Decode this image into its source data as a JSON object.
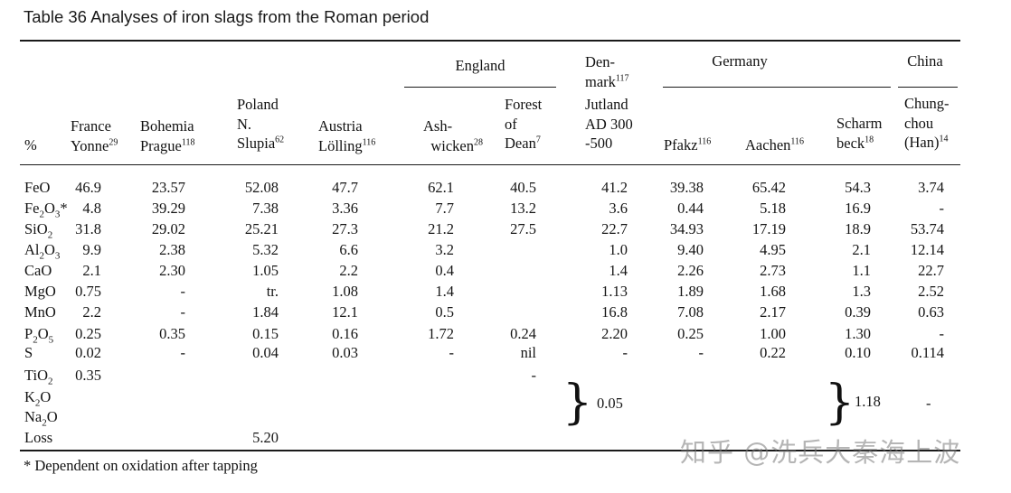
{
  "caption": "Table 36  Analyses of iron slags from the Roman period",
  "groups": {
    "england": "England",
    "germany": "Germany",
    "china": "China",
    "denmark_l1": "Den-",
    "denmark_l2": "mark",
    "denmark_ref": "117"
  },
  "headers": {
    "percent": "%",
    "france": {
      "l1": "France",
      "l2": "Yonne",
      "ref": "29"
    },
    "bohemia": {
      "l1": "Bohemia",
      "l2": "Prague",
      "ref": "118"
    },
    "poland": {
      "l1": "Poland",
      "l2": "N.",
      "l3": "Slupia",
      "ref": "62"
    },
    "austria": {
      "l1": "Austria",
      "l2": "Lölling",
      "ref": "116"
    },
    "ashwicken": {
      "l1": "Ash-",
      "l2": "wicken",
      "ref": "28"
    },
    "forest": {
      "l1": "Forest",
      "l2": "of",
      "l3": "Dean",
      "ref": "7"
    },
    "jutland": {
      "l1": "Jutland",
      "l2": "AD 300",
      "l3": "-500"
    },
    "pfakz": {
      "l1": "Pfakz",
      "ref": "116"
    },
    "aachen": {
      "l1": "Aachen",
      "ref": "116"
    },
    "scharm": {
      "l1": "Scharm",
      "l2": "beck",
      "ref": "18"
    },
    "chungchou": {
      "l1": "Chung-",
      "l2": "chou",
      "l3": "(Han)",
      "ref": "14"
    }
  },
  "rows": [
    {
      "label": "FeO",
      "v": [
        "46.9",
        "23.57",
        "52.08",
        "47.7",
        "62.1",
        "40.5",
        "41.2",
        "39.38",
        "65.42",
        "54.3",
        "3.74"
      ]
    },
    {
      "label": "Fe2O3*",
      "v": [
        "4.8",
        "39.29",
        "7.38",
        "3.36",
        "7.7",
        "13.2",
        "3.6",
        "0.44",
        "5.18",
        "16.9",
        "-"
      ]
    },
    {
      "label": "SiO2",
      "v": [
        "31.8",
        "29.02",
        "25.21",
        "27.3",
        "21.2",
        "27.5",
        "22.7",
        "34.93",
        "17.19",
        "18.9",
        "53.74"
      ]
    },
    {
      "label": "Al2O3",
      "v": [
        "9.9",
        "2.38",
        "5.32",
        "6.6",
        "3.2",
        "",
        "1.0",
        "9.40",
        "4.95",
        "2.1",
        "12.14"
      ]
    },
    {
      "label": "CaO",
      "v": [
        "2.1",
        "2.30",
        "1.05",
        "2.2",
        "0.4",
        "",
        "1.4",
        "2.26",
        "2.73",
        "1.1",
        "22.7"
      ]
    },
    {
      "label": "MgO",
      "v": [
        "0.75",
        "-",
        "tr.",
        "1.08",
        "1.4",
        "",
        "1.13",
        "1.89",
        "1.68",
        "1.3",
        "2.52"
      ]
    },
    {
      "label": "MnO",
      "v": [
        "2.2",
        "-",
        "1.84",
        "12.1",
        "0.5",
        "",
        "16.8",
        "7.08",
        "2.17",
        "0.39",
        "0.63"
      ]
    },
    {
      "label": "P2O5",
      "v": [
        "0.25",
        "0.35",
        "0.15",
        "0.16",
        "1.72",
        "0.24",
        "2.20",
        "0.25",
        "1.00",
        "1.30",
        "-"
      ]
    },
    {
      "label": "S",
      "v": [
        "0.02",
        "-",
        "0.04",
        "0.03",
        "-",
        "nil",
        "-",
        "-",
        "0.22",
        "0.10",
        "0.114"
      ]
    },
    {
      "label": "TiO2",
      "v": [
        "0.35",
        "",
        "",
        "",
        "",
        "-",
        "",
        "",
        "",
        "",
        ""
      ]
    },
    {
      "label": "K2O",
      "v": [
        "",
        "",
        "",
        "",
        "",
        "",
        "",
        "",
        "",
        "",
        ""
      ]
    },
    {
      "label": "Na2O",
      "v": [
        "",
        "",
        "",
        "",
        "",
        "",
        "",
        "",
        "",
        "",
        ""
      ]
    },
    {
      "label": "Loss",
      "v": [
        "",
        "",
        "5.20",
        "",
        "",
        "",
        "",
        "",
        "",
        "",
        ""
      ]
    }
  ],
  "combined": {
    "denmark": "0.05",
    "scharm": "1.18",
    "china": "-"
  },
  "footnote": "* Dependent on oxidation after tapping",
  "watermark": "知乎 @洗兵大秦海上波"
}
